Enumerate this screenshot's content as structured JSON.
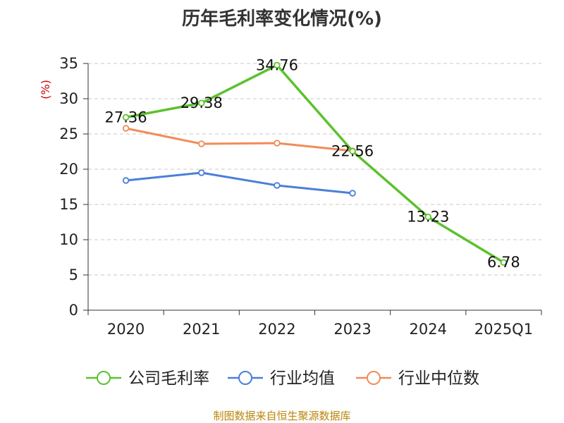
{
  "chart_data": {
    "type": "line",
    "title": "历年毛利率变化情况(%)",
    "ylabel": "(%)",
    "xlabel": "",
    "ylim": [
      0,
      35
    ],
    "yticks": [
      0,
      5,
      10,
      15,
      20,
      25,
      30,
      35
    ],
    "grid": true,
    "legend_position": "bottom",
    "categories": [
      "2020",
      "2021",
      "2022",
      "2023",
      "2024",
      "2025Q1"
    ],
    "series": [
      {
        "name": "公司毛利率",
        "color": "#5cc12e",
        "values": [
          27.36,
          29.38,
          34.76,
          22.56,
          13.23,
          6.78
        ],
        "labels": [
          "27.36",
          "29.38",
          "34.76",
          "22.56",
          "13.23",
          "6.78"
        ]
      },
      {
        "name": "行业均值",
        "color": "#4a7fd9",
        "values": [
          18.4,
          19.5,
          17.7,
          16.6,
          null,
          null
        ]
      },
      {
        "name": "行业中位数",
        "color": "#f08c5a",
        "values": [
          25.8,
          23.6,
          23.7,
          22.6,
          null,
          null
        ]
      }
    ]
  },
  "source_text": "制图数据来自恒生聚源数据库"
}
